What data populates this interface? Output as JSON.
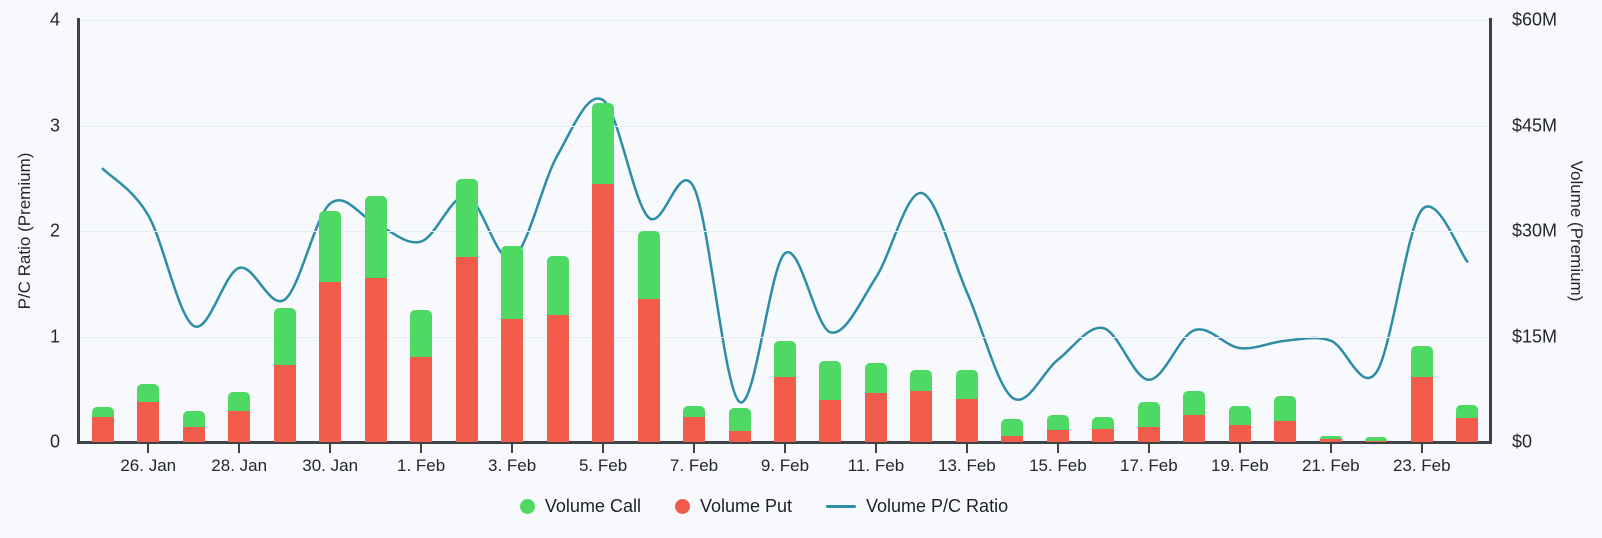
{
  "chart_data": {
    "type": "bar",
    "title": "",
    "categories": [
      "25. Jan",
      "26. Jan",
      "27. Jan",
      "28. Jan",
      "29. Jan",
      "30. Jan",
      "31. Jan",
      "1. Feb",
      "2. Feb",
      "3. Feb",
      "4. Feb",
      "5. Feb",
      "6. Feb",
      "7. Feb",
      "8. Feb",
      "9. Feb",
      "10. Feb",
      "11. Feb",
      "12. Feb",
      "13. Feb",
      "14. Feb",
      "15. Feb",
      "16. Feb",
      "17. Feb",
      "18. Feb",
      "19. Feb",
      "20. Feb",
      "21. Feb",
      "22. Feb",
      "23. Feb",
      "24. Feb"
    ],
    "x_tick_labels": [
      "26. Jan",
      "28. Jan",
      "30. Jan",
      "1. Feb",
      "3. Feb",
      "5. Feb",
      "7. Feb",
      "9. Feb",
      "11. Feb",
      "13. Feb",
      "15. Feb",
      "17. Feb",
      "19. Feb",
      "21. Feb",
      "23. Feb"
    ],
    "series": [
      {
        "name": "Volume Call",
        "type": "bar",
        "stacked": true,
        "color": "#4ed964",
        "unit": "M USD",
        "values": [
          1.5,
          2.6,
          2.2,
          2.7,
          8.0,
          10.2,
          11.7,
          6.6,
          11.1,
          10.4,
          8.4,
          11.5,
          9.7,
          1.6,
          3.2,
          5.1,
          5.6,
          4.2,
          2.9,
          4.2,
          2.4,
          2.1,
          1.7,
          3.5,
          3.4,
          2.7,
          3.6,
          0.5,
          0.5,
          4.4,
          1.8
        ]
      },
      {
        "name": "Volume Put",
        "type": "bar",
        "stacked": true,
        "color": "#f25c4a",
        "unit": "M USD",
        "values": [
          3.5,
          5.7,
          2.2,
          4.4,
          11.0,
          22.7,
          23.3,
          12.1,
          26.3,
          17.5,
          18.0,
          36.7,
          20.3,
          3.5,
          1.6,
          9.3,
          5.9,
          7.0,
          7.3,
          6.1,
          0.9,
          1.7,
          1.8,
          2.2,
          3.8,
          2.4,
          3.0,
          0.4,
          0.2,
          9.3,
          3.4
        ]
      },
      {
        "name": "Volume P/C Ratio",
        "type": "line",
        "axis": "left",
        "color": "#2d8da6",
        "values": [
          2.59,
          2.15,
          1.1,
          1.65,
          1.35,
          2.26,
          2.07,
          1.9,
          2.33,
          1.74,
          2.72,
          3.24,
          2.13,
          2.41,
          0.38,
          1.79,
          1.04,
          1.56,
          2.36,
          1.42,
          0.42,
          0.78,
          1.08,
          0.59,
          1.06,
          0.89,
          0.96,
          0.96,
          0.66,
          2.2,
          1.71
        ]
      }
    ],
    "left_axis": {
      "label": "P/C Ratio (Premium)",
      "tick_labels": [
        "0",
        "1",
        "2",
        "3",
        "4"
      ],
      "range": [
        0,
        4
      ],
      "grid": true
    },
    "right_axis": {
      "label": "Volume (Premium)",
      "tick_labels": [
        "$0",
        "$15M",
        "$30M",
        "$45M",
        "$60M"
      ],
      "range_millions": [
        0,
        60
      ]
    },
    "legend": {
      "position": "bottom",
      "items": [
        {
          "label": "Volume Call",
          "marker": "circle",
          "color": "#4ed964"
        },
        {
          "label": "Volume Put",
          "marker": "circle",
          "color": "#f25c4a"
        },
        {
          "label": "Volume P/C Ratio",
          "marker": "line",
          "color": "#2d8da6"
        }
      ]
    }
  },
  "colors": {
    "background": "#f7f9fc",
    "gridline": "#e7eef7",
    "axis_line": "#3f4347",
    "text": "#24272b",
    "call_green": "#4ed964",
    "put_red": "#f25c4a",
    "ratio_teal": "#2d8da6"
  }
}
